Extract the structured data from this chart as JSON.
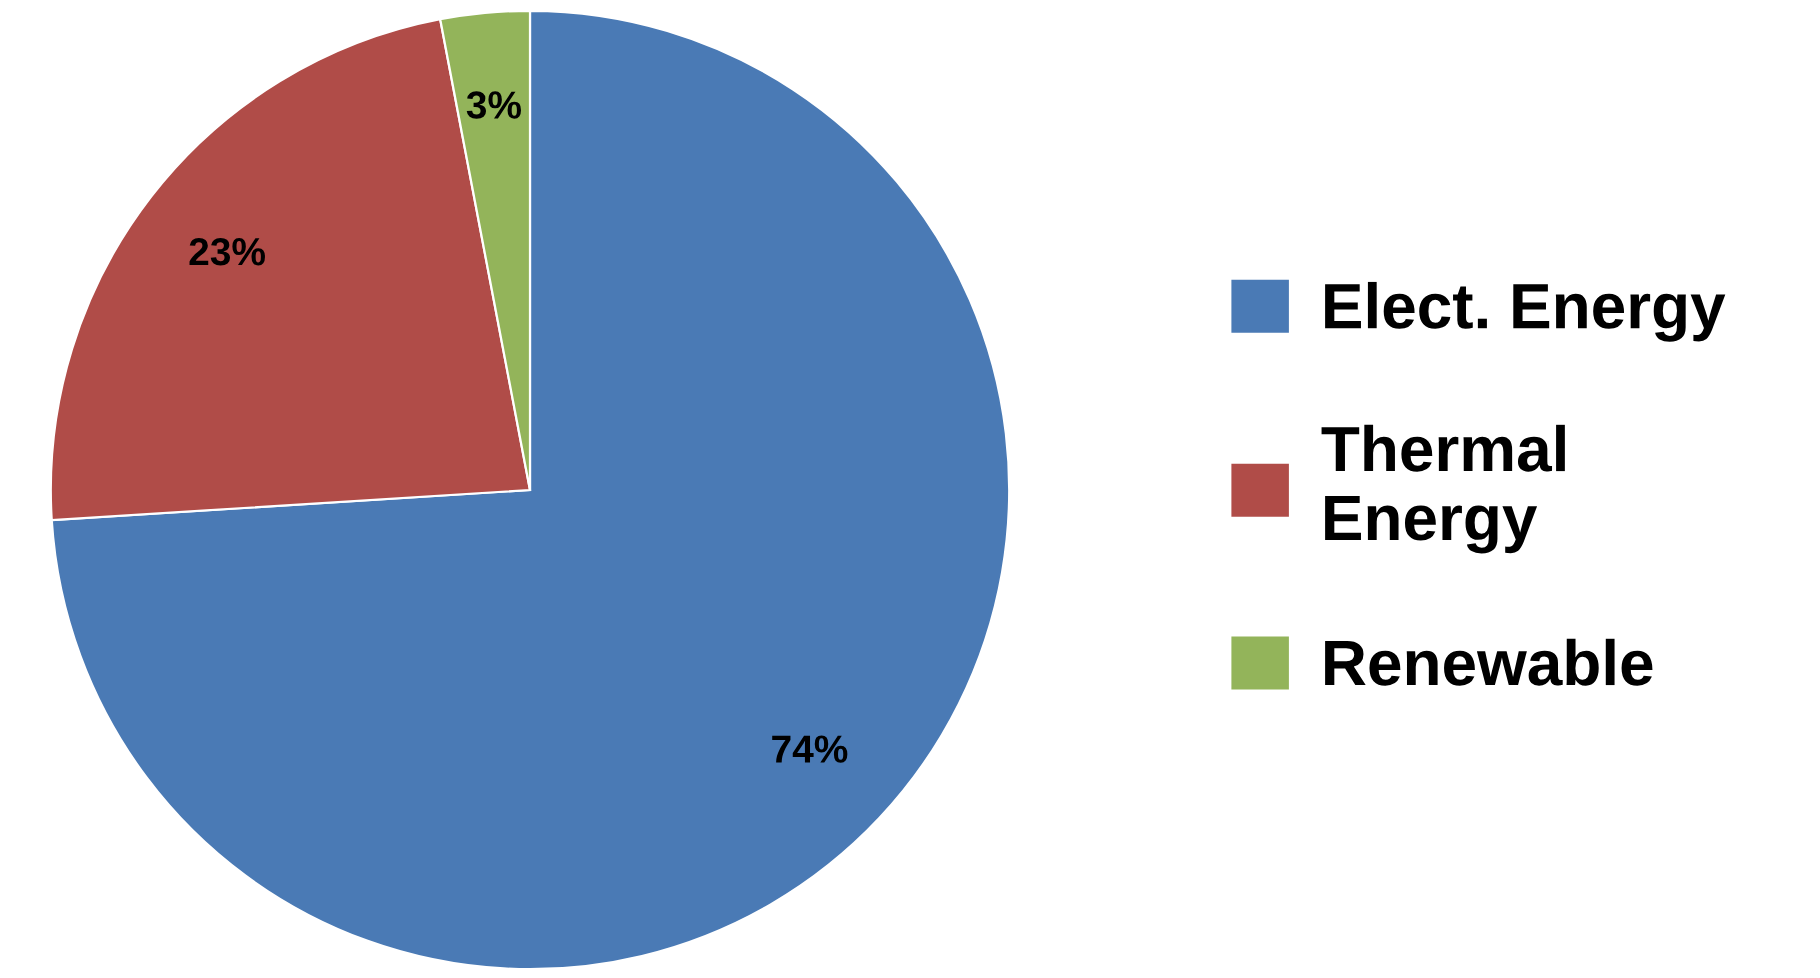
{
  "chart_data": {
    "type": "pie",
    "categories": [
      "Elect. Energy",
      "Thermal\nEnergy",
      "Renewable"
    ],
    "values": [
      74,
      23,
      3
    ],
    "colors": [
      "#4a7ab5",
      "#b04c48",
      "#93b45a"
    ],
    "value_labels": [
      "74%",
      "23%",
      "3%"
    ],
    "legend": "right"
  }
}
